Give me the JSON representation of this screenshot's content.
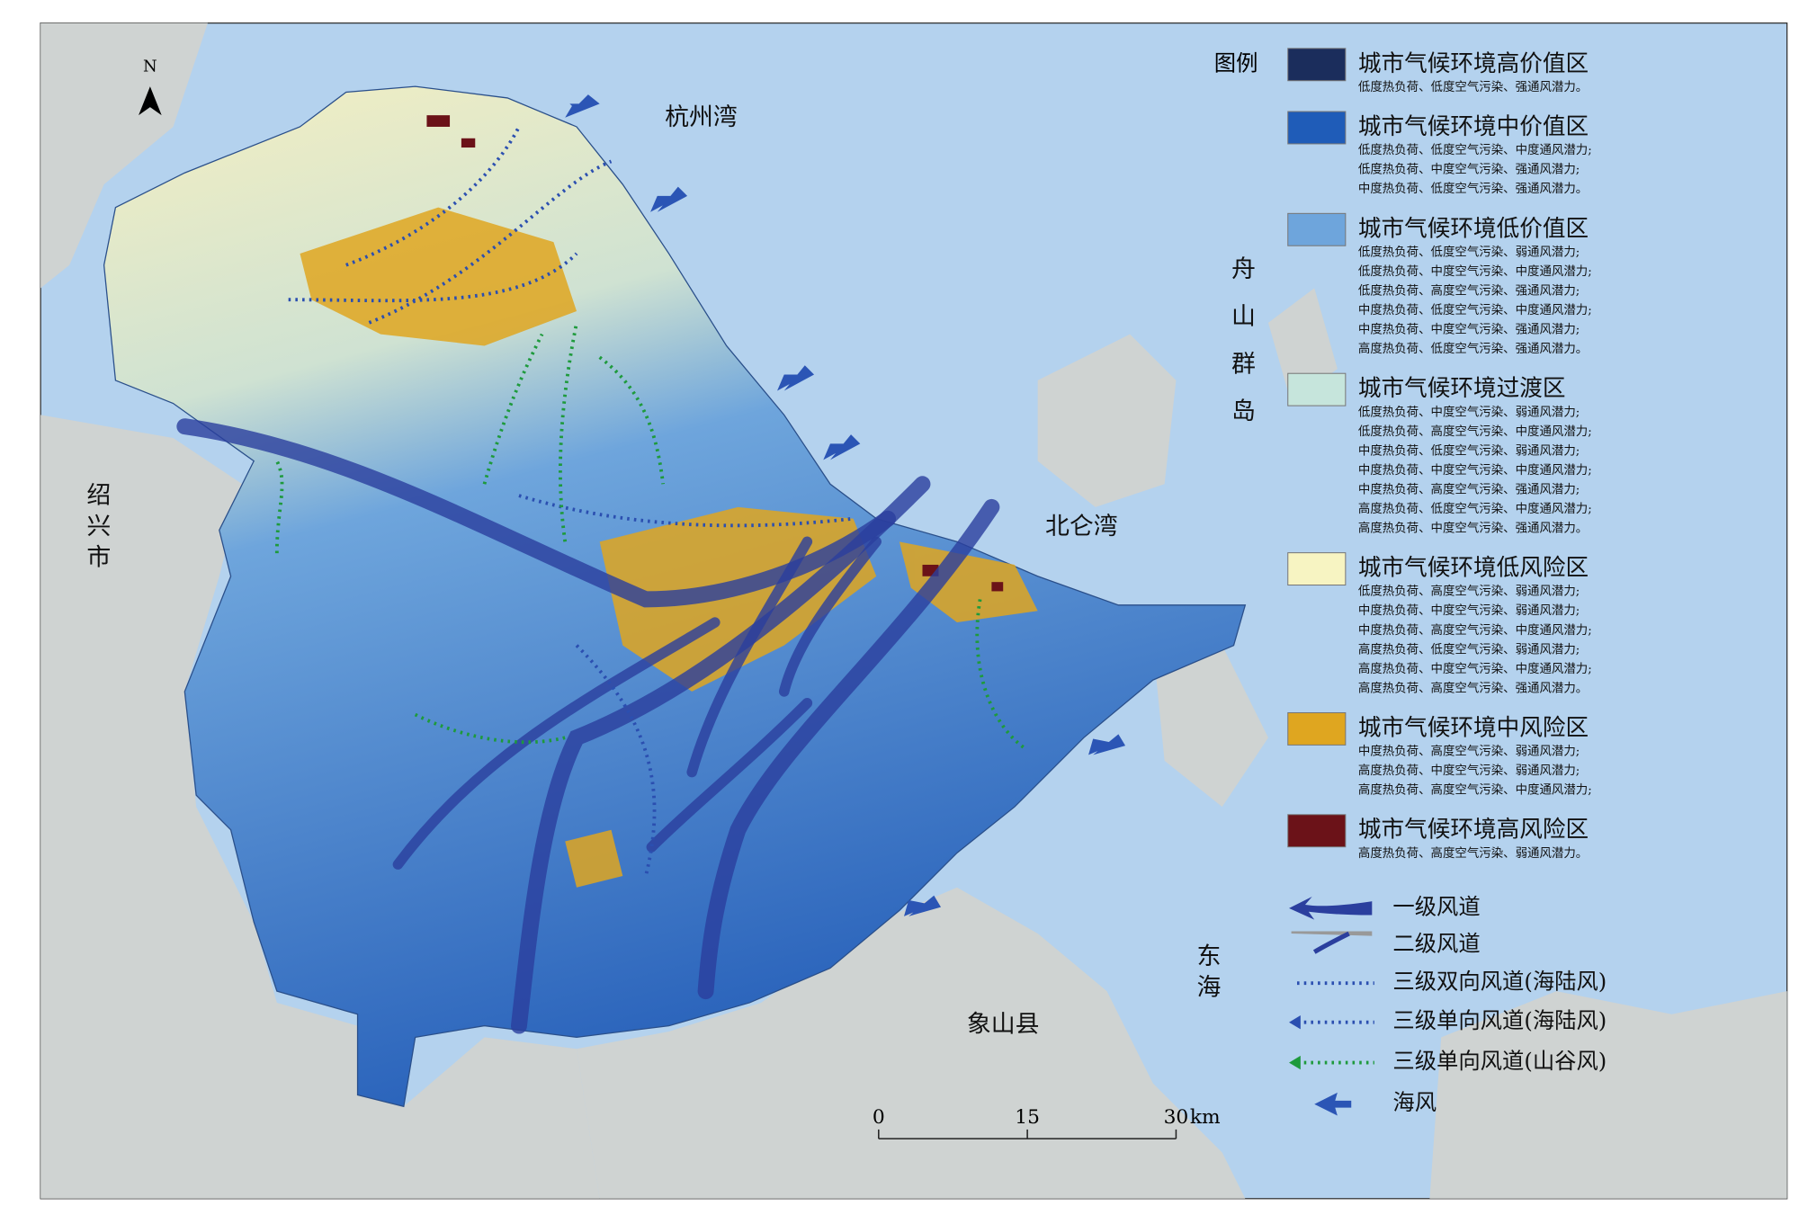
{
  "north": "N",
  "places": {
    "hangzhou_bay": "杭州湾",
    "zhoushan": "舟山群岛",
    "beilun_bay": "北仑湾",
    "shaoxing": "绍兴市",
    "east_sea": "东海",
    "xiangshan": "象山县"
  },
  "legend": {
    "title": "图例",
    "zones": [
      {
        "name": "城市气候环境高价值区",
        "color": "#1b2d5c",
        "notes": [
          "低度热负荷、低度空气污染、强通风潜力。"
        ]
      },
      {
        "name": "城市气候环境中价值区",
        "color": "#1f5cb8",
        "notes": [
          "低度热负荷、低度空气污染、中度通风潜力;",
          "低度热负荷、中度空气污染、强通风潜力;",
          "中度热负荷、低度空气污染、强通风潜力。"
        ]
      },
      {
        "name": "城市气候环境低价值区",
        "color": "#6ea5dc",
        "notes": [
          "低度热负荷、低度空气污染、弱通风潜力;",
          "低度热负荷、中度空气污染、中度通风潜力;",
          "低度热负荷、高度空气污染、强通风潜力;",
          "中度热负荷、低度空气污染、中度通风潜力;",
          "中度热负荷、中度空气污染、强通风潜力;",
          "高度热负荷、低度空气污染、强通风潜力。"
        ]
      },
      {
        "name": "城市气候环境过渡区",
        "color": "#c6e5dc",
        "notes": [
          "低度热负荷、中度空气污染、弱通风潜力;",
          "低度热负荷、高度空气污染、中度通风潜力;",
          "中度热负荷、低度空气污染、弱通风潜力;",
          "中度热负荷、中度空气污染、中度通风潜力;",
          "中度热负荷、高度空气污染、强通风潜力;",
          "高度热负荷、低度空气污染、中度通风潜力;",
          "高度热负荷、中度空气污染、强通风潜力。"
        ]
      },
      {
        "name": "城市气候环境低风险区",
        "color": "#f7f4c2",
        "notes": [
          "低度热负荷、高度空气污染、弱通风潜力;",
          "中度热负荷、中度空气污染、弱通风潜力;",
          "中度热负荷、高度空气污染、中度通风潜力;",
          "高度热负荷、低度空气污染、弱通风潜力;",
          "高度热负荷、中度空气污染、中度通风潜力;",
          "高度热负荷、高度空气污染、强通风潜力。"
        ]
      },
      {
        "name": "城市气候环境中风险区",
        "color": "#dfa620",
        "notes": [
          "中度热负荷、高度空气污染、弱通风潜力;",
          "高度热负荷、中度空气污染、弱通风潜力;",
          "高度热负荷、高度空气污染、中度通风潜力;"
        ]
      },
      {
        "name": "城市气候环境高风险区",
        "color": "#6b1218",
        "notes": [
          "高度热负荷、高度空气污染、弱通风潜力。"
        ]
      }
    ],
    "corridors": [
      "一级风道",
      "二级风道",
      "三级双向风道(海陆风)",
      "三级单向风道(海陆风)",
      "三级单向风道(山谷风)",
      "海风"
    ]
  },
  "scale": {
    "ticks": [
      0,
      15,
      30
    ],
    "unit": "km"
  }
}
